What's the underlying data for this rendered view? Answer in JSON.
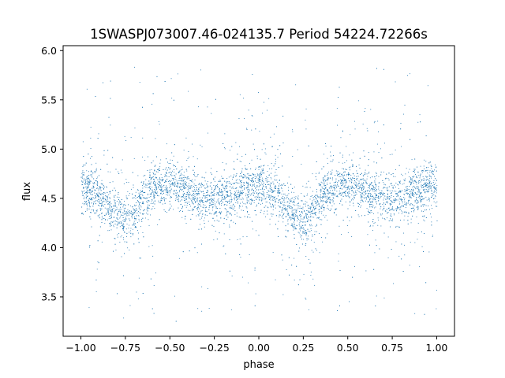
{
  "chart_data": {
    "type": "scatter",
    "title": "1SWASPJ073007.46-024135.7 Period 54224.72266s",
    "xlabel": "phase",
    "ylabel": "flux",
    "xlim": [
      -1.1,
      1.1
    ],
    "ylim": [
      3.1,
      6.05
    ],
    "xticks": [
      -1.0,
      -0.75,
      -0.5,
      -0.25,
      0.0,
      0.25,
      0.5,
      0.75,
      1.0
    ],
    "xtick_labels": [
      "−1.00",
      "−0.75",
      "−0.50",
      "−0.25",
      "0.00",
      "0.25",
      "0.50",
      "0.75",
      "1.00"
    ],
    "yticks": [
      3.5,
      4.0,
      4.5,
      5.0,
      5.5,
      6.0
    ],
    "ytick_labels": [
      "3.5",
      "4.0",
      "4.5",
      "5.0",
      "5.5",
      "6.0"
    ],
    "grid": false,
    "legend": "none",
    "marker_color": "#1f77b4",
    "series": [
      {
        "x": [
          -1.0,
          -0.95,
          -0.9,
          -0.85,
          -0.8,
          -0.75,
          -0.7,
          -0.65,
          -0.6,
          -0.55,
          -0.5,
          -0.45,
          -0.4,
          -0.35,
          -0.3,
          -0.25,
          -0.2,
          -0.15,
          -0.1,
          -0.05,
          0.0,
          0.05,
          0.1,
          0.15,
          0.2,
          0.25,
          0.3,
          0.35,
          0.4,
          0.45,
          0.5,
          0.55,
          0.6,
          0.65,
          0.7,
          0.75,
          0.8,
          0.85,
          0.9,
          0.95,
          1.0
        ],
        "y": [
          4.62,
          4.6,
          4.55,
          4.42,
          4.33,
          4.3,
          4.38,
          4.52,
          4.6,
          4.63,
          4.64,
          4.62,
          4.58,
          4.53,
          4.5,
          4.5,
          4.52,
          4.55,
          4.58,
          4.6,
          4.62,
          4.6,
          4.55,
          4.42,
          4.33,
          4.3,
          4.38,
          4.52,
          4.6,
          4.63,
          4.64,
          4.62,
          4.58,
          4.53,
          4.5,
          4.5,
          4.52,
          4.55,
          4.58,
          4.6,
          4.62
        ]
      }
    ]
  }
}
